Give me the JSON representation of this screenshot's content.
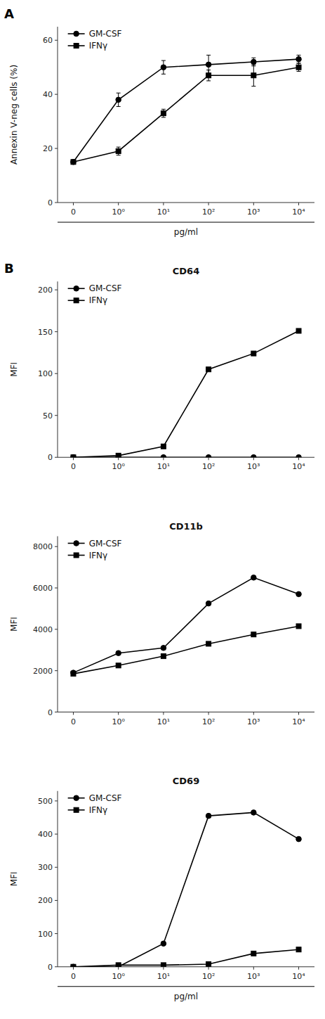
{
  "chart_data": [
    {
      "type": "line",
      "panel_label": "A",
      "ylabel": "Annexin V-neg cells (%)",
      "xlabel": "pg/ml",
      "categories": [
        "0",
        "10⁰",
        "10¹",
        "10²",
        "10³",
        "10⁴"
      ],
      "series": [
        {
          "name": "GM-CSF",
          "color": "#000000",
          "marker": "circle",
          "values": [
            15,
            38,
            50,
            51,
            52,
            53
          ],
          "errors": [
            0.5,
            2.5,
            2.5,
            3.5,
            1.5,
            1.5
          ]
        },
        {
          "name": "IFNγ",
          "color": "#000000",
          "marker": "square",
          "values": [
            15,
            19,
            33,
            47,
            47,
            50
          ],
          "errors": [
            0.5,
            1.5,
            1.5,
            2,
            4,
            1.5
          ]
        }
      ],
      "ylim": [
        0,
        65
      ],
      "yticks": [
        0,
        20,
        40,
        60
      ],
      "legend": "upper left"
    },
    {
      "type": "line",
      "panel_label": "B",
      "title": "CD64",
      "ylabel": "MFI",
      "categories": [
        "0",
        "10⁰",
        "10¹",
        "10²",
        "10³",
        "10⁴"
      ],
      "series": [
        {
          "name": "GM-CSF",
          "color": "#000000",
          "marker": "circle",
          "values": [
            0,
            0,
            0,
            0,
            0,
            0
          ]
        },
        {
          "name": "IFNγ",
          "color": "#000000",
          "marker": "square",
          "values": [
            0,
            2,
            13,
            105,
            124,
            151
          ]
        }
      ],
      "ylim": [
        0,
        210
      ],
      "yticks": [
        0,
        50,
        100,
        150,
        200
      ],
      "legend": "upper left"
    },
    {
      "type": "line",
      "title": "CD11b",
      "ylabel": "MFI",
      "categories": [
        "0",
        "10⁰",
        "10¹",
        "10²",
        "10³",
        "10⁴"
      ],
      "series": [
        {
          "name": "GM-CSF",
          "color": "#000000",
          "marker": "circle",
          "values": [
            1900,
            2850,
            3100,
            5250,
            6500,
            5700
          ]
        },
        {
          "name": "IFNγ",
          "color": "#000000",
          "marker": "square",
          "values": [
            1850,
            2250,
            2700,
            3300,
            3750,
            4150
          ]
        }
      ],
      "ylim": [
        0,
        8500
      ],
      "yticks": [
        0,
        2000,
        4000,
        6000,
        8000
      ],
      "legend": "upper left"
    },
    {
      "type": "line",
      "title": "CD69",
      "ylabel": "MFI",
      "xlabel": "pg/ml",
      "categories": [
        "0",
        "10⁰",
        "10¹",
        "10²",
        "10³",
        "10⁴"
      ],
      "series": [
        {
          "name": "GM-CSF",
          "color": "#000000",
          "marker": "circle",
          "values": [
            0,
            0,
            70,
            455,
            465,
            385
          ]
        },
        {
          "name": "IFNγ",
          "color": "#000000",
          "marker": "square",
          "values": [
            0,
            5,
            5,
            8,
            40,
            52
          ]
        }
      ],
      "ylim": [
        0,
        530
      ],
      "yticks": [
        0,
        100,
        200,
        300,
        400,
        500
      ],
      "legend": "upper left"
    }
  ]
}
